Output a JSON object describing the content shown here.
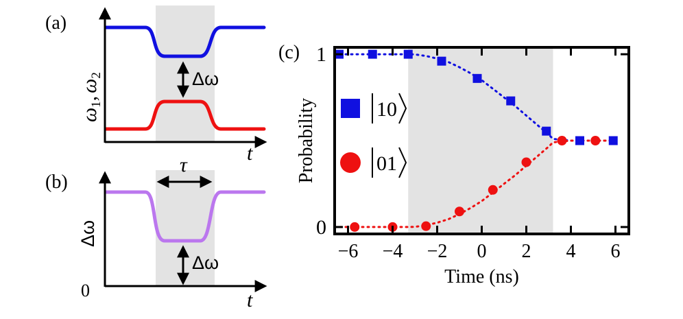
{
  "panels": {
    "a": {
      "tag": "(a)",
      "ylabel": "ω₁, ω₂",
      "ylabel_main": "ω",
      "ylabel_sub1": "1",
      "ylabel_sep": ",",
      "ylabel_sub2": "2",
      "xlabel": "t",
      "gap_label": "Δω",
      "colors": {
        "upper": "#1010e0",
        "lower": "#ee1111",
        "shade": "#e3e3e3"
      }
    },
    "b": {
      "tag": "(b)",
      "ylabel": "Δω",
      "xlabel": "t",
      "zero_label": "0",
      "width_label": "τ",
      "gap_label": "Δω",
      "colors": {
        "curve": "#bb77ee",
        "shade": "#e3e3e3"
      }
    },
    "c": {
      "tag": "(c)"
    }
  },
  "chart_data": {
    "type": "scatter",
    "title": "",
    "xlabel": "Time (ns)",
    "ylabel": "Probability",
    "xlim": [
      -6.6,
      6.6
    ],
    "ylim": [
      -0.04,
      1.04
    ],
    "x_ticks": [
      -6,
      -4,
      -2,
      0,
      2,
      4,
      6
    ],
    "x_tick_labels": [
      "−6",
      "−4",
      "−2",
      "0",
      "2",
      "4",
      "6"
    ],
    "y_ticks": [
      0,
      1
    ],
    "y_tick_labels": [
      "0",
      "1"
    ],
    "shaded_region": {
      "x_from": -3.3,
      "x_to": 3.2,
      "color": "#e3e3e3"
    },
    "series": [
      {
        "name": "|10⟩",
        "ket": "10",
        "marker": "square",
        "color": "#1010e0",
        "x": [
          -6.4,
          -4.9,
          -3.3,
          -1.8,
          -0.2,
          1.3,
          2.9,
          4.4,
          5.9
        ],
        "y": [
          1.0,
          1.0,
          1.0,
          0.96,
          0.86,
          0.73,
          0.555,
          0.5,
          0.5
        ],
        "fit": {
          "x": [
            -6.6,
            -4.0,
            -3.3,
            -3.0,
            -2.5,
            -2.0,
            -1.5,
            -1.0,
            -0.5,
            0.0,
            0.5,
            1.0,
            1.5,
            2.0,
            2.5,
            3.0,
            3.2,
            4.0,
            6.0
          ],
          "y": [
            1.0,
            1.0,
            1.0,
            0.999,
            0.99,
            0.975,
            0.955,
            0.925,
            0.89,
            0.85,
            0.8,
            0.75,
            0.7,
            0.645,
            0.59,
            0.535,
            0.51,
            0.5,
            0.5
          ]
        }
      },
      {
        "name": "|01⟩",
        "ket": "01",
        "marker": "circle",
        "color": "#ee1111",
        "x": [
          -5.7,
          -4.0,
          -2.5,
          -1.0,
          0.5,
          2.0,
          3.6,
          5.1
        ],
        "y": [
          0.0,
          0.0,
          0.005,
          0.09,
          0.215,
          0.375,
          0.5,
          0.5
        ],
        "fit": {
          "x": [
            -6.6,
            -4.0,
            -3.3,
            -3.0,
            -2.5,
            -2.0,
            -1.5,
            -1.0,
            -0.5,
            0.0,
            0.5,
            1.0,
            1.5,
            2.0,
            2.5,
            3.0,
            3.2,
            4.0,
            6.0
          ],
          "y": [
            0.0,
            0.0,
            0.0,
            0.001,
            0.01,
            0.025,
            0.045,
            0.075,
            0.11,
            0.15,
            0.2,
            0.25,
            0.3,
            0.355,
            0.41,
            0.465,
            0.49,
            0.5,
            0.5
          ]
        }
      }
    ]
  }
}
